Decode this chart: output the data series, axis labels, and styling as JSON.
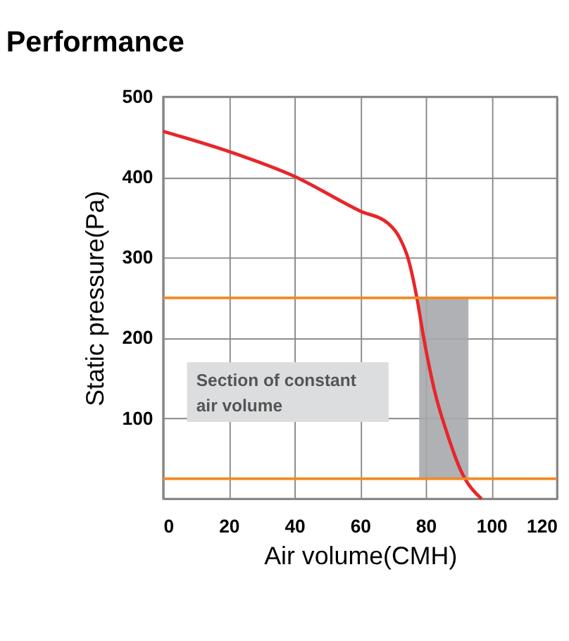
{
  "chart_data": {
    "type": "line",
    "title": "Performance",
    "xlabel": "Air volume(CMH)",
    "ylabel": "Static pressure(Pa)",
    "x": [
      0,
      20,
      40,
      60,
      68.7,
      72,
      74.7,
      77.3,
      79.3,
      82.7,
      86.7,
      90.7,
      97
    ],
    "series": [
      {
        "color": "#e8262a",
        "values": [
          457,
          432,
          401,
          358,
          342,
          325,
          298,
          250,
          202,
          134,
          79,
          35,
          0
        ]
      }
    ],
    "xlim": [
      0,
      120
    ],
    "xticks": [
      0,
      20,
      40,
      60,
      80,
      100,
      120
    ],
    "ylim": [
      0,
      500
    ],
    "yticks": [
      {
        "value": 0,
        "label": null
      },
      100,
      200,
      300,
      400,
      500
    ],
    "grid": true,
    "marker": "none",
    "line_style": "solid",
    "ref_lines": [
      {
        "axis": "y",
        "value": 250,
        "color": "#f08a24"
      },
      {
        "axis": "y",
        "value": 25,
        "color": "#f08a24"
      }
    ],
    "bands": [
      {
        "axis": "x",
        "from": 78,
        "to": 93,
        "color": "#a7a9ac"
      }
    ],
    "annotations": [
      "Section of constant air volume"
    ]
  }
}
